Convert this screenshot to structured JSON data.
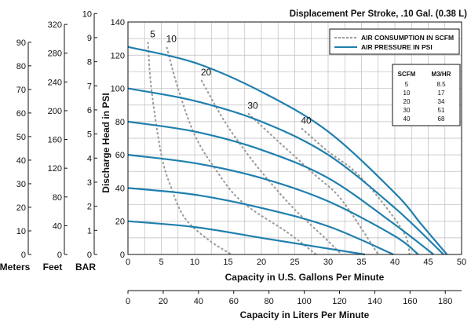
{
  "chart_data": {
    "type": "line",
    "title": "Displacement Per Stroke, .10 Gal. (0.38 L)",
    "xlabel": "Capacity in U.S. Gallons Per Minute",
    "ylabel": "Discharge Head in PSI",
    "xlim": [
      0,
      50
    ],
    "ylim": [
      0,
      140
    ],
    "x_ticks": [
      0,
      5,
      10,
      15,
      20,
      25,
      30,
      35,
      40,
      45,
      50
    ],
    "y_ticks": [
      0,
      20,
      40,
      60,
      80,
      100,
      120,
      140
    ],
    "grid": true,
    "secondary_x_axis": {
      "label": "Capacity in Liters Per Minute",
      "lim": [
        0,
        189.25
      ],
      "ticks": [
        0,
        20,
        40,
        60,
        80,
        100,
        120,
        140,
        160,
        180
      ]
    },
    "secondary_y_axes": [
      {
        "label": "Meters",
        "lim": [
          0,
          98.6
        ],
        "ticks": [
          0,
          10,
          20,
          30,
          40,
          50,
          60,
          70,
          80,
          90
        ]
      },
      {
        "label": "Feet",
        "lim": [
          0,
          323.4
        ],
        "ticks": [
          0,
          40,
          80,
          120,
          160,
          200,
          240,
          280,
          320
        ]
      },
      {
        "label": "BAR",
        "lim": [
          0,
          9.65
        ],
        "ticks": [
          0,
          1,
          2,
          3,
          4,
          5,
          6,
          7,
          8,
          9,
          10
        ]
      }
    ],
    "legend": {
      "placement": "top-right",
      "entries": [
        {
          "label": "AIR CONSUMPTION IN SCFM",
          "style": "dashed",
          "color": "#9a9a9a"
        },
        {
          "label": "AIR PRESSURE IN PSI",
          "style": "solid",
          "color": "#1f7fae"
        }
      ]
    },
    "air_pressure_series": [
      {
        "x": [
          0,
          10,
          20,
          30,
          40,
          44,
          47.8
        ],
        "y": [
          125,
          115.5,
          98,
          74,
          37,
          18,
          0
        ]
      },
      {
        "x": [
          0,
          10,
          20,
          30,
          40,
          47.3
        ],
        "y": [
          100,
          92.5,
          80,
          60,
          28,
          0
        ]
      },
      {
        "x": [
          0,
          10,
          20,
          30,
          40,
          45.8
        ],
        "y": [
          80,
          74,
          63,
          46,
          18,
          0
        ]
      },
      {
        "x": [
          0,
          10,
          20,
          30,
          40,
          43.5
        ],
        "y": [
          60,
          55,
          46,
          32,
          11,
          0
        ]
      },
      {
        "x": [
          0,
          10,
          20,
          30,
          39.8
        ],
        "y": [
          40,
          36,
          28,
          17,
          0
        ]
      },
      {
        "x": [
          0,
          10,
          20,
          30,
          35.5
        ],
        "y": [
          20,
          16.5,
          10,
          3.5,
          0
        ]
      }
    ],
    "air_consumption_series": [
      {
        "name": "5",
        "x": [
          3.0,
          3.5,
          5.0,
          6.5,
          8.5,
          12.0,
          15.5
        ],
        "y": [
          128,
          100,
          60,
          40,
          22,
          9,
          0
        ]
      },
      {
        "name": "10",
        "x": [
          5.8,
          7.5,
          10.0,
          13.0,
          17.0,
          24.0,
          28.2
        ],
        "y": [
          125,
          100,
          72,
          52,
          32,
          13,
          0
        ]
      },
      {
        "name": "20",
        "x": [
          11.0,
          14.5,
          18.0,
          21.0,
          25.0,
          29.5,
          32.0
        ],
        "y": [
          105,
          80,
          60,
          45,
          27,
          10,
          0
        ]
      },
      {
        "name": "30",
        "x": [
          18.0,
          22.0,
          28.0,
          32.0,
          37.5
        ],
        "y": [
          85,
          70,
          48,
          33,
          0
        ]
      },
      {
        "name": "40",
        "x": [
          26.0,
          30.0,
          34.0,
          38.0,
          41.5,
          42.2
        ],
        "y": [
          76,
          62,
          50,
          32,
          12,
          0
        ]
      }
    ],
    "scfm_table": {
      "headers": [
        "SCFM",
        "M3/HR"
      ],
      "rows": [
        [
          "5",
          "8.5"
        ],
        [
          "10",
          "17"
        ],
        [
          "20",
          "34"
        ],
        [
          "30",
          "51"
        ],
        [
          "40",
          "68"
        ]
      ]
    },
    "colors": {
      "pressure": "#1f7fae",
      "consumption": "#9a9a9a",
      "grid": "#bdbdbd"
    }
  }
}
